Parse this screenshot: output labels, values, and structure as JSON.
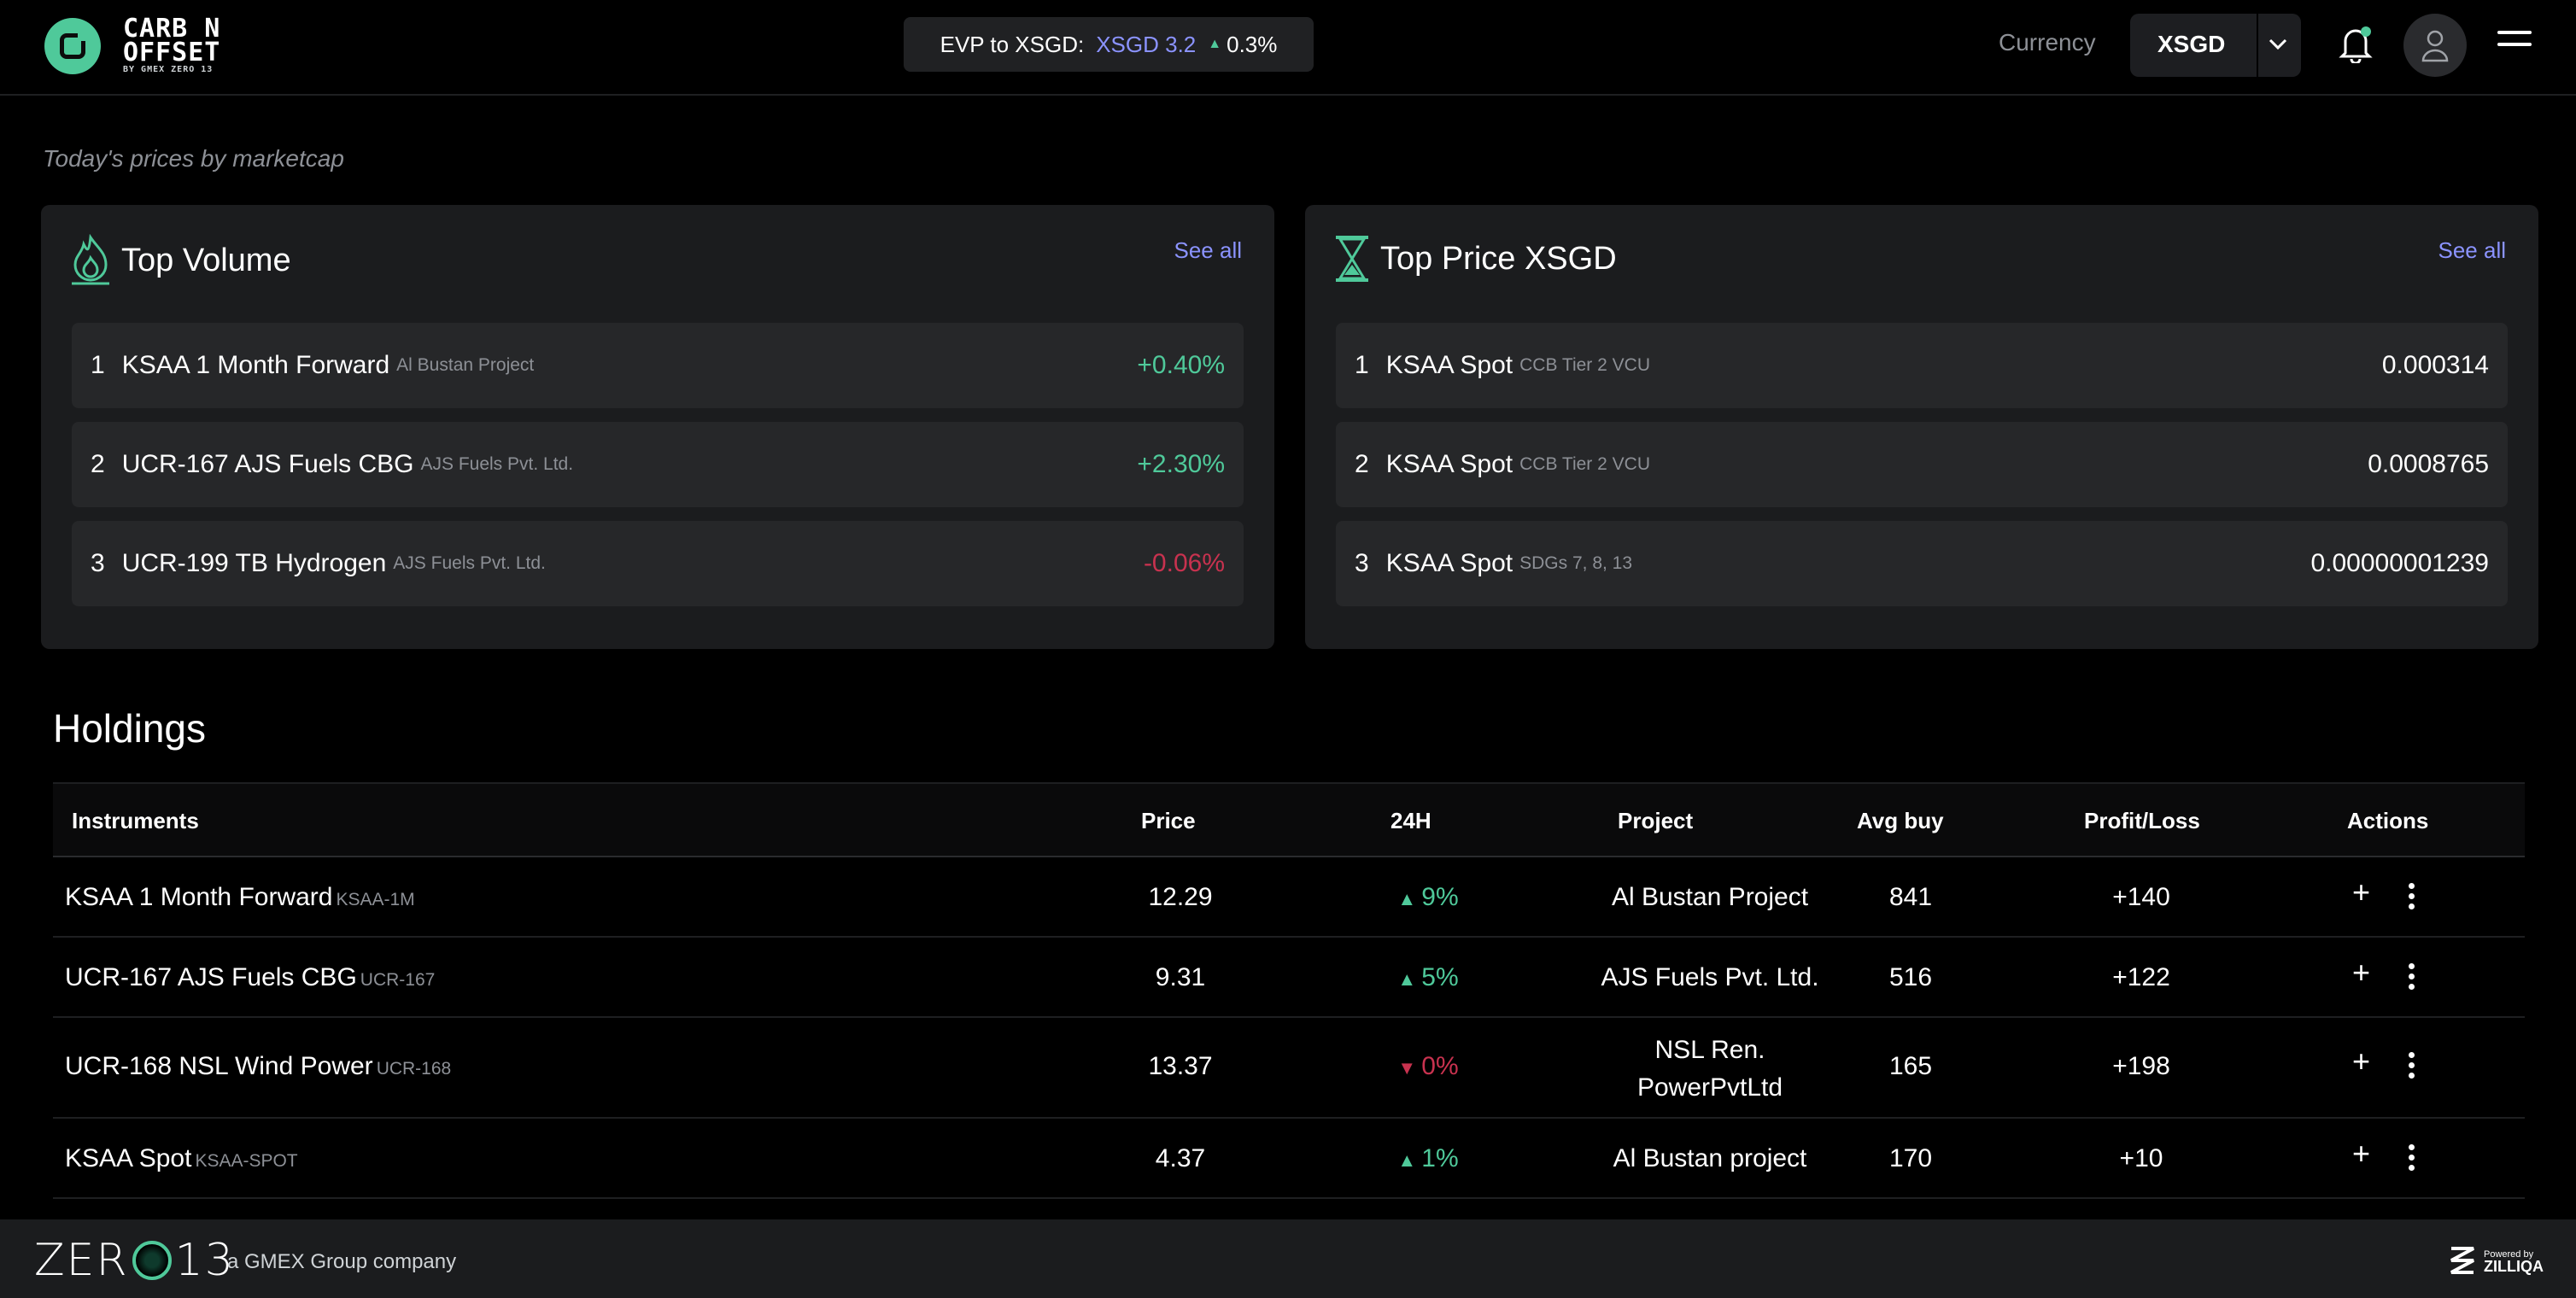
{
  "header": {
    "logo": {
      "line1": "CARB N",
      "line2": "OFFSET",
      "line3": "BY GMEX ZERO 13"
    },
    "ticker": {
      "label": "EVP to XSGD:",
      "value": "XSGD 3.2",
      "change": "0.3%"
    },
    "currency_label": "Currency",
    "currency_value": "XSGD"
  },
  "section_label": "Today's prices by marketcap",
  "top_volume": {
    "title": "Top Volume",
    "see_all": "See all",
    "rows": [
      {
        "rank": "1",
        "name": "KSAA 1 Month Forward",
        "sub": "Al Bustan Project",
        "value": "+0.40%"
      },
      {
        "rank": "2",
        "name": "UCR-167 AJS Fuels CBG",
        "sub": "AJS Fuels Pvt. Ltd.",
        "value": "+2.30%"
      },
      {
        "rank": "3",
        "name": "UCR-199 TB Hydrogen",
        "sub": "AJS Fuels Pvt. Ltd.",
        "value": "-0.06%"
      }
    ]
  },
  "top_price": {
    "title": "Top Price XSGD",
    "see_all": "See all",
    "rows": [
      {
        "rank": "1",
        "name": "KSAA Spot",
        "sub": "CCB Tier 2 VCU",
        "value": "0.000314"
      },
      {
        "rank": "2",
        "name": "KSAA Spot",
        "sub": "CCB Tier 2 VCU",
        "value": "0.0008765"
      },
      {
        "rank": "3",
        "name": "KSAA Spot",
        "sub": "SDGs 7, 8, 13",
        "value": "0.00000001239"
      }
    ]
  },
  "holdings": {
    "title": "Holdings",
    "columns": [
      "Instruments",
      "Price",
      "24H",
      "Project",
      "Avg buy",
      "Profit/Loss",
      "Actions"
    ],
    "rows": [
      {
        "name": "KSAA 1 Month Forward",
        "code": "KSAA-1M",
        "price": "12.29",
        "change": "9%",
        "dir": "up",
        "project": "Al Bustan Project",
        "project2": "",
        "avg_buy": "841",
        "pnl": "+140"
      },
      {
        "name": "UCR-167 AJS Fuels CBG",
        "code": "UCR-167",
        "price": "9.31",
        "change": "5%",
        "dir": "up",
        "project": "AJS Fuels Pvt. Ltd.",
        "project2": "",
        "avg_buy": "516",
        "pnl": "+122"
      },
      {
        "name": "UCR-168 NSL Wind Power",
        "code": "UCR-168",
        "price": "13.37",
        "change": "0%",
        "dir": "down",
        "project": "NSL Ren.",
        "project2": "PowerPvtLtd",
        "avg_buy": "165",
        "pnl": "+198"
      },
      {
        "name": "KSAA Spot",
        "code": "KSAA-SPOT",
        "price": "4.37",
        "change": "1%",
        "dir": "up",
        "project": "Al Bustan project",
        "project2": "",
        "avg_buy": "170",
        "pnl": "+10"
      }
    ]
  },
  "footer": {
    "brand_left": "ZER",
    "brand_right": "13",
    "tagline": "a GMEX Group company",
    "powered_by": "Powered by",
    "powered_brand": "ZILLIQA"
  },
  "colors": {
    "accent_green": "#4fc99a",
    "accent_purple": "#8b93ff",
    "negative": "#c8324f"
  }
}
